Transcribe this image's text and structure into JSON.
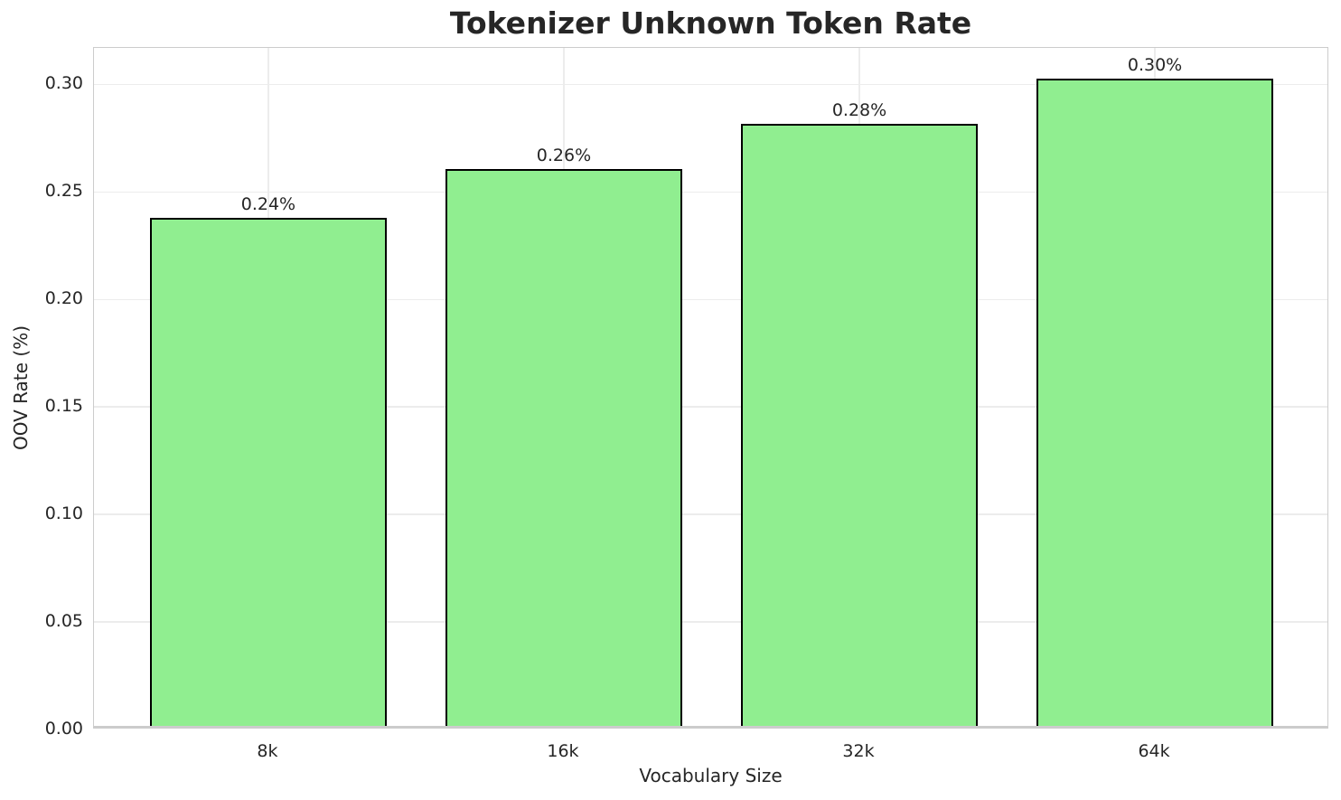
{
  "chart_data": {
    "type": "bar",
    "title": "Tokenizer Unknown Token Rate",
    "xlabel": "Vocabulary Size",
    "ylabel": "OOV Rate (%)",
    "categories": [
      "8k",
      "16k",
      "32k",
      "64k"
    ],
    "values": [
      0.237,
      0.26,
      0.281,
      0.302
    ],
    "bar_labels": [
      "0.24%",
      "0.26%",
      "0.28%",
      "0.30%"
    ],
    "ylim": [
      0,
      0.317
    ],
    "ytick_values": [
      0.0,
      0.05,
      0.1,
      0.15,
      0.2,
      0.25,
      0.3
    ],
    "ytick_labels": [
      "0.00",
      "0.05",
      "0.10",
      "0.15",
      "0.20",
      "0.25",
      "0.30"
    ],
    "grid": true,
    "legend_position": "none",
    "colors": {
      "bar_fill": "#90ee90",
      "bar_edge": "#000000",
      "grid": "#ececec",
      "spine": "#cccccc",
      "text": "#262626"
    }
  }
}
